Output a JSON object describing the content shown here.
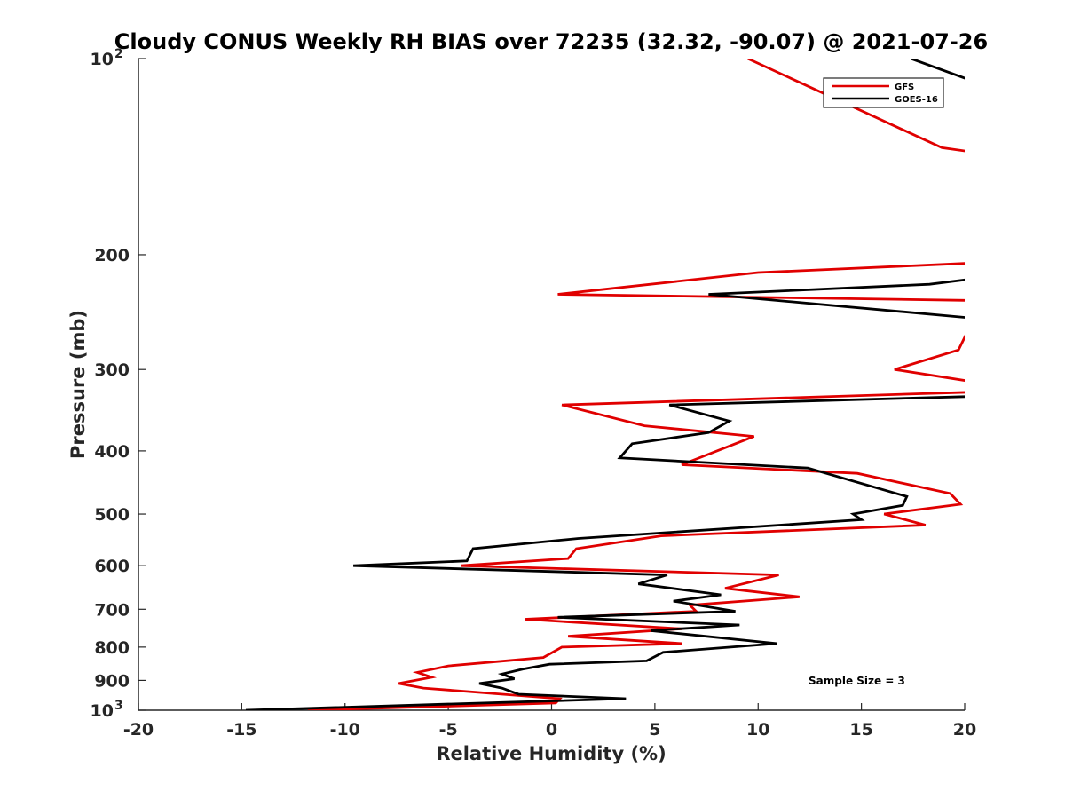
{
  "chart_data": {
    "type": "line",
    "title": "Cloudy CONUS Weekly RH BIAS over 72235 (32.32, -90.07) @ 2021-07-26",
    "xlabel": "Relative Humidity (%)",
    "ylabel": "Pressure (mb)",
    "xlim": [
      -20,
      20
    ],
    "ylim": [
      100,
      1000
    ],
    "yscale": "log-reversed",
    "x_ticks": [
      "-20",
      "-15",
      "-10",
      "-5",
      "0",
      "5",
      "10",
      "15",
      "20"
    ],
    "y_ticks": [
      {
        "value": 100,
        "label": "10",
        "sup": "2"
      },
      {
        "value": 200,
        "label": "200",
        "sup": ""
      },
      {
        "value": 300,
        "label": "300",
        "sup": ""
      },
      {
        "value": 400,
        "label": "400",
        "sup": ""
      },
      {
        "value": 500,
        "label": "500",
        "sup": ""
      },
      {
        "value": 600,
        "label": "600",
        "sup": ""
      },
      {
        "value": 700,
        "label": "700",
        "sup": ""
      },
      {
        "value": 800,
        "label": "800",
        "sup": ""
      },
      {
        "value": 900,
        "label": "900",
        "sup": ""
      },
      {
        "value": 1000,
        "label": "10",
        "sup": "3"
      }
    ],
    "legend_position": "top-right",
    "annotation": "Sample Size = 3",
    "series": [
      {
        "name": "GFS",
        "color": "#e00000",
        "points": [
          [
            9.5,
            100
          ],
          [
            18.9,
            137
          ],
          [
            20.3,
            139
          ],
          [
            20.3,
            206
          ],
          [
            10.0,
            213
          ],
          [
            0.3,
            230
          ],
          [
            20.3,
            235
          ],
          [
            20.3,
            256
          ],
          [
            19.7,
            280
          ],
          [
            16.6,
            300
          ],
          [
            20.3,
            313
          ],
          [
            20.3,
            325
          ],
          [
            0.5,
            340
          ],
          [
            4.5,
            366
          ],
          [
            9.8,
            380
          ],
          [
            6.3,
            420
          ],
          [
            14.8,
            433
          ],
          [
            19.3,
            465
          ],
          [
            19.8,
            483
          ],
          [
            16.1,
            500
          ],
          [
            18.1,
            520
          ],
          [
            5.3,
            540
          ],
          [
            1.2,
            565
          ],
          [
            0.8,
            585
          ],
          [
            -4.4,
            600
          ],
          [
            11.0,
            620
          ],
          [
            8.4,
            650
          ],
          [
            12.0,
            670
          ],
          [
            6.7,
            690
          ],
          [
            7.0,
            705
          ],
          [
            -1.3,
            725
          ],
          [
            6.3,
            750
          ],
          [
            0.8,
            770
          ],
          [
            6.3,
            790
          ],
          [
            0.5,
            800
          ],
          [
            -0.4,
            830
          ],
          [
            -5.0,
            855
          ],
          [
            -6.5,
            875
          ],
          [
            -5.8,
            890
          ],
          [
            -7.4,
            910
          ],
          [
            -6.2,
            925
          ],
          [
            0.4,
            960
          ],
          [
            0.2,
            975
          ],
          [
            -11.8,
            1000
          ]
        ]
      },
      {
        "name": "GOES-16",
        "color": "#000000",
        "points": [
          [
            17.4,
            100
          ],
          [
            20.3,
            108
          ],
          [
            20.3,
            218
          ],
          [
            18.3,
            222
          ],
          [
            7.6,
            230
          ],
          [
            20.3,
            250
          ],
          [
            20.3,
            330
          ],
          [
            5.7,
            340
          ],
          [
            8.6,
            360
          ],
          [
            7.6,
            375
          ],
          [
            3.9,
            390
          ],
          [
            3.3,
            410
          ],
          [
            12.4,
            425
          ],
          [
            17.2,
            470
          ],
          [
            17.0,
            485
          ],
          [
            14.6,
            500
          ],
          [
            15.0,
            510
          ],
          [
            1.3,
            545
          ],
          [
            -3.8,
            565
          ],
          [
            -4.1,
            590
          ],
          [
            -9.6,
            600
          ],
          [
            5.6,
            620
          ],
          [
            4.2,
            640
          ],
          [
            8.2,
            665
          ],
          [
            5.9,
            680
          ],
          [
            8.9,
            705
          ],
          [
            0.3,
            720
          ],
          [
            9.1,
            740
          ],
          [
            4.8,
            755
          ],
          [
            10.9,
            790
          ],
          [
            5.4,
            815
          ],
          [
            4.6,
            840
          ],
          [
            -0.1,
            850
          ],
          [
            -1.4,
            865
          ],
          [
            -2.4,
            880
          ],
          [
            -1.8,
            895
          ],
          [
            -3.5,
            910
          ],
          [
            -2.4,
            925
          ],
          [
            -1.6,
            945
          ],
          [
            3.6,
            960
          ],
          [
            -14.8,
            1000
          ]
        ]
      }
    ]
  }
}
